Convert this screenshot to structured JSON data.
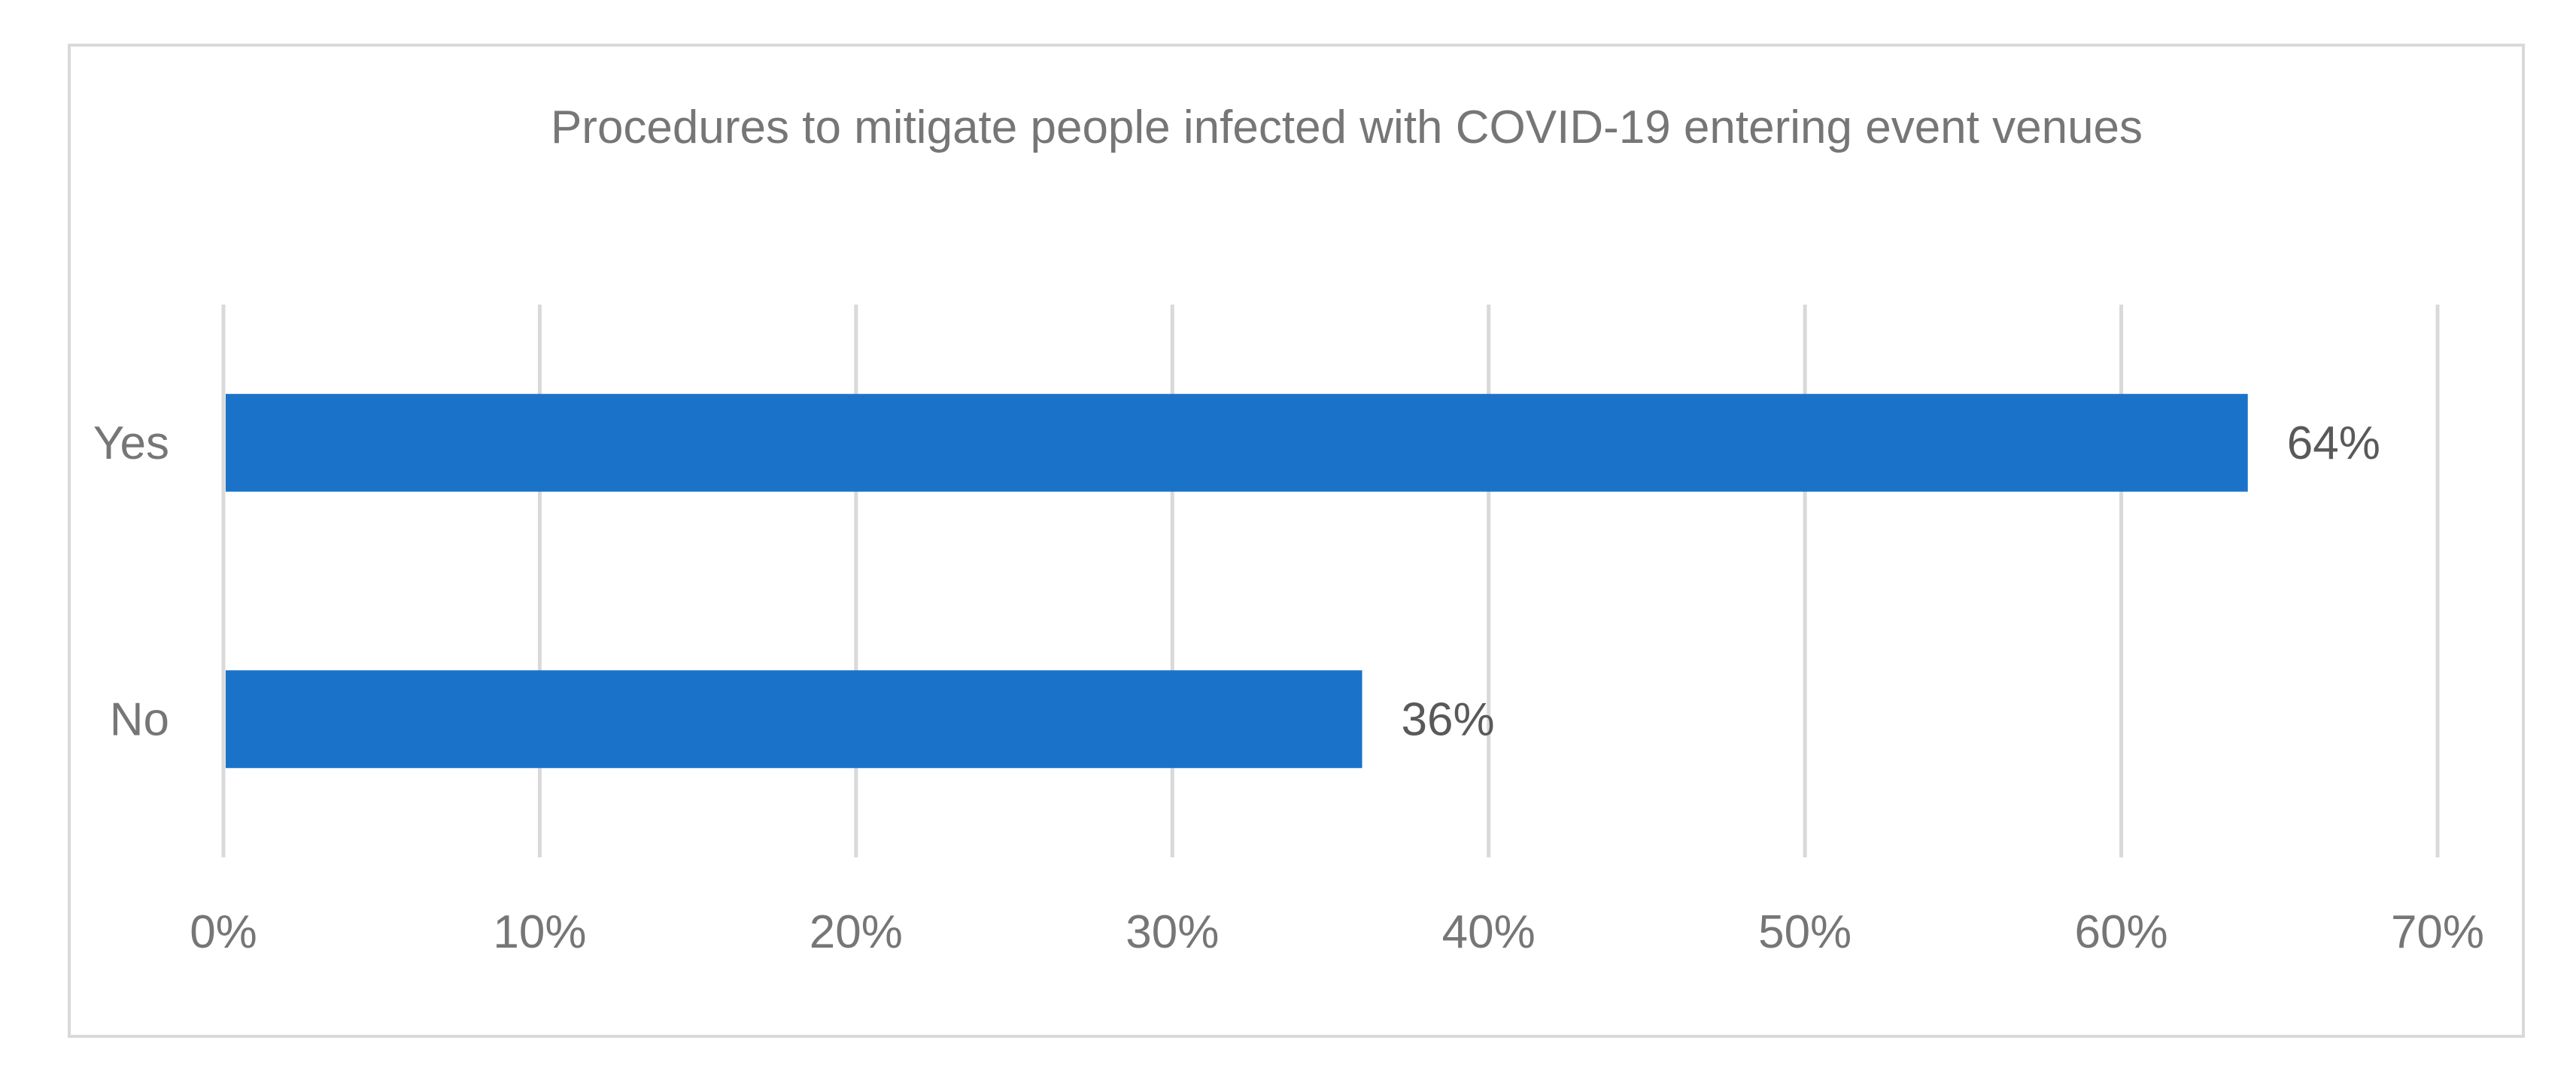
{
  "chart_data": {
    "type": "bar",
    "orientation": "horizontal",
    "title": "Procedures to mitigate people infected with COVID-19 entering event venues",
    "categories": [
      "Yes",
      "No"
    ],
    "values": [
      64,
      36
    ],
    "data_labels": [
      "64%",
      "36%"
    ],
    "x_ticks": [
      "0%",
      "10%",
      "20%",
      "30%",
      "40%",
      "50%",
      "60%",
      "70%"
    ],
    "xlim": [
      0,
      70
    ],
    "grid": true,
    "legend": "none",
    "bar_color": "#1a73c9",
    "gridline_color": "#d9d9d9",
    "text_color": "#767676"
  }
}
